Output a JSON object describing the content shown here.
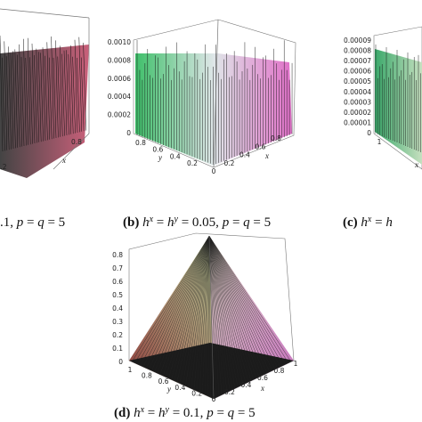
{
  "panels": [
    {
      "id": "a",
      "caption": [
        {
          "t": ".1, "
        },
        {
          "t": "p",
          "italic": true
        },
        {
          "t": " = "
        },
        {
          "t": "q",
          "italic": true
        },
        {
          "t": " = 5"
        }
      ],
      "z_ticks": [],
      "y_ticks": [
        ".2"
      ],
      "x_ticks": [
        "0.8"
      ],
      "x_label": "x"
    },
    {
      "id": "b",
      "caption": [
        {
          "t": "(b)",
          "bold": true
        },
        {
          "t": " "
        },
        {
          "t": "h",
          "italic": true
        },
        {
          "t": "x",
          "italic": true,
          "sup": true
        },
        {
          "t": " = "
        },
        {
          "t": "h",
          "italic": true
        },
        {
          "t": "y",
          "italic": true,
          "sup": true
        },
        {
          "t": " = 0.05, "
        },
        {
          "t": "p",
          "italic": true
        },
        {
          "t": " = "
        },
        {
          "t": "q",
          "italic": true
        },
        {
          "t": " = 5"
        }
      ],
      "z_ticks": [
        "0.0010",
        "0.0008",
        "0.0006",
        "0.0004",
        "0.0002",
        "0"
      ],
      "y_ticks": [
        "0.8",
        "0.6",
        "0.4",
        "0.2"
      ],
      "x_ticks": [
        "0",
        "0.2",
        "0.4",
        "0.6",
        "0.8"
      ],
      "y_label": "y",
      "x_label": "x"
    },
    {
      "id": "c",
      "caption": [
        {
          "t": "(c)",
          "bold": true
        },
        {
          "t": " "
        },
        {
          "t": "h",
          "italic": true
        },
        {
          "t": "x",
          "italic": true,
          "sup": true
        },
        {
          "t": " = "
        },
        {
          "t": "h",
          "italic": true
        }
      ],
      "z_ticks": [
        "0.00009",
        "0.00008",
        "0.00007",
        "0.00006",
        "0.00005",
        "0.00004",
        "0.00003",
        "0.00002",
        "0.00001",
        "0"
      ],
      "y_ticks": [
        "1"
      ],
      "x_ticks": [],
      "x_label": "x"
    },
    {
      "id": "d",
      "caption": [
        {
          "t": "(d)",
          "bold": true
        },
        {
          "t": " "
        },
        {
          "t": "h",
          "italic": true
        },
        {
          "t": "x",
          "italic": true,
          "sup": true
        },
        {
          "t": " = "
        },
        {
          "t": "h",
          "italic": true
        },
        {
          "t": "y",
          "italic": true,
          "sup": true
        },
        {
          "t": " = 0.1, "
        },
        {
          "t": "p",
          "italic": true
        },
        {
          "t": " = "
        },
        {
          "t": "q",
          "italic": true
        },
        {
          "t": " = 5"
        }
      ],
      "z_ticks": [
        "0.8",
        "0.7",
        "0.6",
        "0.5",
        "0.4",
        "0.3",
        "0.2",
        "0.1",
        "0"
      ],
      "y_ticks": [
        "1",
        "0.8",
        "0.6",
        "0.4",
        "0.2",
        "0"
      ],
      "x_ticks": [
        "0.2",
        "0.4",
        "0.6",
        "0.8",
        "1"
      ],
      "y_label": "y",
      "x_label": "x"
    }
  ]
}
